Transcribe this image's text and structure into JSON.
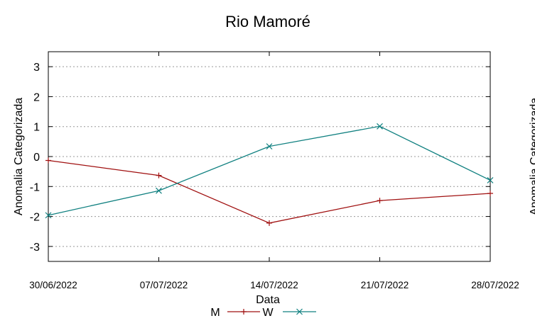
{
  "chart_data": {
    "type": "line",
    "title": "Rio Mamoré",
    "xlabel": "Data",
    "ylabel": "Anomalia Categorizada",
    "y2label": "Anomalia Categorizada",
    "x": [
      "30/06/2022",
      "07/07/2022",
      "14/07/2022",
      "21/07/2022",
      "28/07/2022"
    ],
    "xticks": [
      "30/06/2022",
      "07/07/2022",
      "14/07/2022",
      "21/07/2022",
      "28/07/2022"
    ],
    "yticks": [
      3,
      2,
      1,
      0,
      -1,
      -2,
      -3
    ],
    "ylim": [
      -3.5,
      3.5
    ],
    "grid": true,
    "legend_placement": "bottom",
    "series": [
      {
        "name": "M",
        "color": "#a01010",
        "marker": "plus",
        "values": [
          -0.13,
          -0.63,
          -2.22,
          -1.47,
          -1.23
        ]
      },
      {
        "name": "W",
        "color": "#108080",
        "marker": "cross",
        "values": [
          -1.96,
          -1.14,
          0.34,
          1.01,
          -0.79
        ]
      }
    ]
  }
}
